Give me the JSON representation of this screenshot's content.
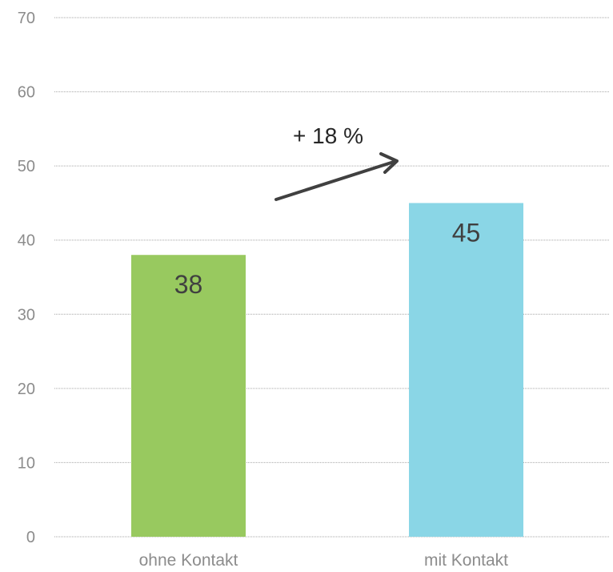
{
  "chart_data": {
    "type": "bar",
    "categories": [
      "ohne Kontakt",
      "mit Kontakt"
    ],
    "values": [
      38,
      45
    ],
    "data_labels": [
      "38",
      "45"
    ],
    "ylim": [
      0,
      70
    ],
    "yticks": [
      "0",
      "10",
      "20",
      "30",
      "40",
      "50",
      "60",
      "70"
    ],
    "grid": true,
    "colors": [
      "#98c95f",
      "#8ad6e6"
    ],
    "annotation": "+ 18 %",
    "annotation_arrow": "rising arrow between bars",
    "title": "",
    "xlabel": "",
    "ylabel": ""
  }
}
